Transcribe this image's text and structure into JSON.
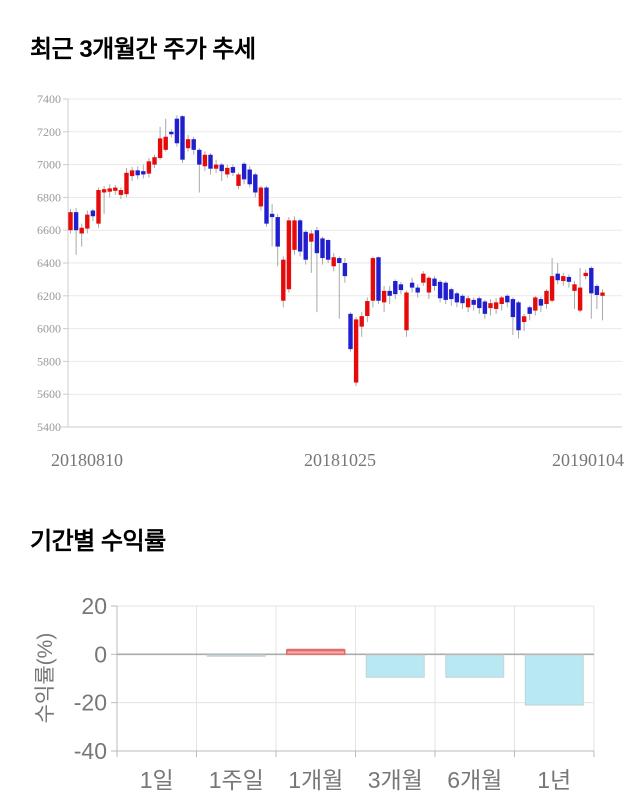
{
  "sections": {
    "price_trend": {
      "title": "최근 3개월간 주가 추세"
    },
    "returns": {
      "title": "기간별 수익률"
    }
  },
  "chart_data": [
    {
      "type": "candlestick",
      "title": "최근 3개월간 주가 추세",
      "ylim": [
        5400,
        7400
      ],
      "y_ticks": [
        7400,
        7200,
        7000,
        6800,
        6600,
        6400,
        6200,
        6000,
        5800,
        5600,
        5400
      ],
      "x_tick_labels": [
        "20180810",
        "20181025",
        "20190104"
      ],
      "grid": "horizontal",
      "up_color": "#e60b0b",
      "down_color": "#1f1fd0",
      "wick_color": "#a8a8a8",
      "candles_ohlc": [
        [
          6600,
          6730,
          6580,
          6710
        ],
        [
          6710,
          6735,
          6450,
          6600
        ],
        [
          6580,
          6640,
          6500,
          6615
        ],
        [
          6610,
          6720,
          6580,
          6695
        ],
        [
          6720,
          6730,
          6655,
          6685
        ],
        [
          6640,
          6860,
          6615,
          6845
        ],
        [
          6830,
          6870,
          6700,
          6850
        ],
        [
          6835,
          6880,
          6800,
          6855
        ],
        [
          6840,
          6875,
          6815,
          6860
        ],
        [
          6815,
          6860,
          6790,
          6845
        ],
        [
          6820,
          6980,
          6800,
          6950
        ],
        [
          6930,
          6985,
          6900,
          6965
        ],
        [
          6965,
          6990,
          6910,
          6935
        ],
        [
          6960,
          7000,
          6915,
          6940
        ],
        [
          6945,
          7040,
          6920,
          7020
        ],
        [
          7000,
          7060,
          6980,
          7045
        ],
        [
          7040,
          7230,
          7030,
          7160
        ],
        [
          7090,
          7280,
          7080,
          7170
        ],
        [
          7200,
          7215,
          7165,
          7185
        ],
        [
          7280,
          7300,
          7110,
          7130
        ],
        [
          7295,
          7300,
          7010,
          7030
        ],
        [
          7100,
          7180,
          7080,
          7155
        ],
        [
          7155,
          7170,
          7060,
          7090
        ],
        [
          7090,
          7100,
          6830,
          7000
        ],
        [
          6990,
          7080,
          6960,
          7060
        ],
        [
          7060,
          7070,
          6940,
          6975
        ],
        [
          6975,
          7030,
          6950,
          7000
        ],
        [
          7000,
          7010,
          6900,
          6960
        ],
        [
          6940,
          7000,
          6920,
          6980
        ],
        [
          6985,
          7000,
          6930,
          6950
        ],
        [
          6870,
          6950,
          6850,
          6940
        ],
        [
          7005,
          7015,
          6880,
          6910
        ],
        [
          6970,
          6990,
          6860,
          6880
        ],
        [
          6940,
          6950,
          6800,
          6830
        ],
        [
          6745,
          6870,
          6720,
          6860
        ],
        [
          6860,
          6870,
          6620,
          6640
        ],
        [
          6700,
          6760,
          6500,
          6680
        ],
        [
          6680,
          6700,
          6380,
          6500
        ],
        [
          6170,
          6440,
          6130,
          6420
        ],
        [
          6240,
          6680,
          6220,
          6660
        ],
        [
          6480,
          6685,
          6450,
          6660
        ],
        [
          6660,
          6670,
          6440,
          6470
        ],
        [
          6590,
          6600,
          6390,
          6420
        ],
        [
          6530,
          6600,
          6340,
          6580
        ],
        [
          6600,
          6620,
          6100,
          6460
        ],
        [
          6550,
          6560,
          6390,
          6430
        ],
        [
          6540,
          6545,
          6400,
          6420
        ],
        [
          6380,
          6460,
          6350,
          6435
        ],
        [
          6430,
          6440,
          6060,
          6400
        ],
        [
          6400,
          6430,
          6280,
          6320
        ],
        [
          6090,
          6100,
          5860,
          5875
        ],
        [
          5671,
          6070,
          5650,
          6056
        ],
        [
          6012,
          6100,
          5950,
          6076
        ],
        [
          6077,
          6190,
          6040,
          6168
        ],
        [
          6170,
          6440,
          6130,
          6430
        ],
        [
          6435,
          6440,
          6150,
          6170
        ],
        [
          6160,
          6260,
          6100,
          6230
        ],
        [
          6230,
          6260,
          6150,
          6200
        ],
        [
          6290,
          6300,
          6180,
          6210
        ],
        [
          6270,
          6285,
          6210,
          6235
        ],
        [
          5990,
          6230,
          5950,
          6220
        ],
        [
          6280,
          6310,
          6220,
          6250
        ],
        [
          6250,
          6270,
          6190,
          6220
        ],
        [
          6280,
          6350,
          6260,
          6335
        ],
        [
          6220,
          6320,
          6180,
          6310
        ],
        [
          6305,
          6320,
          6230,
          6260
        ],
        [
          6285,
          6295,
          6160,
          6185
        ],
        [
          6280,
          6290,
          6150,
          6175
        ],
        [
          6240,
          6250,
          6140,
          6180
        ],
        [
          6215,
          6225,
          6130,
          6160
        ],
        [
          6200,
          6210,
          6120,
          6155
        ],
        [
          6130,
          6200,
          6100,
          6185
        ],
        [
          6175,
          6190,
          6110,
          6145
        ],
        [
          6185,
          6195,
          6090,
          6125
        ],
        [
          6165,
          6175,
          6060,
          6090
        ],
        [
          6125,
          6180,
          6080,
          6155
        ],
        [
          6120,
          6185,
          6090,
          6160
        ],
        [
          6150,
          6200,
          6110,
          6190
        ],
        [
          6200,
          6210,
          6130,
          6160
        ],
        [
          6180,
          6190,
          5960,
          6070
        ],
        [
          6160,
          6170,
          5940,
          5990
        ],
        [
          6040,
          6090,
          5985,
          6075
        ],
        [
          6130,
          6140,
          6050,
          6090
        ],
        [
          6110,
          6200,
          6080,
          6190
        ],
        [
          6180,
          6195,
          6100,
          6140
        ],
        [
          6150,
          6240,
          6120,
          6230
        ],
        [
          6170,
          6430,
          6160,
          6320
        ],
        [
          6335,
          6400,
          6270,
          6295
        ],
        [
          6290,
          6340,
          6260,
          6320
        ],
        [
          6315,
          6330,
          6250,
          6285
        ],
        [
          6230,
          6290,
          6120,
          6270
        ],
        [
          6110,
          6370,
          6100,
          6250
        ],
        [
          6320,
          6360,
          6300,
          6340
        ],
        [
          6370,
          6380,
          6060,
          6215
        ],
        [
          6260,
          6270,
          6120,
          6205
        ],
        [
          6200,
          6240,
          6050,
          6220
        ]
      ]
    },
    {
      "type": "bar",
      "title": "기간별 수익률",
      "categories": [
        "1일",
        "1주일",
        "1개월",
        "3개월",
        "6개월",
        "1년"
      ],
      "values": [
        0,
        -0.3,
        1.8,
        -9.5,
        -9.5,
        -21
      ],
      "ylabel": "수익률(%)",
      "y_ticks": [
        20,
        0,
        -20,
        -40
      ],
      "ylim": [
        -40,
        20
      ],
      "grid": "both",
      "positive_fill": "#f7a8a8",
      "positive_edge": "#e26b6b",
      "negative_fill": "#b8e8f2",
      "negative_edge": "#c6d2d7"
    }
  ]
}
